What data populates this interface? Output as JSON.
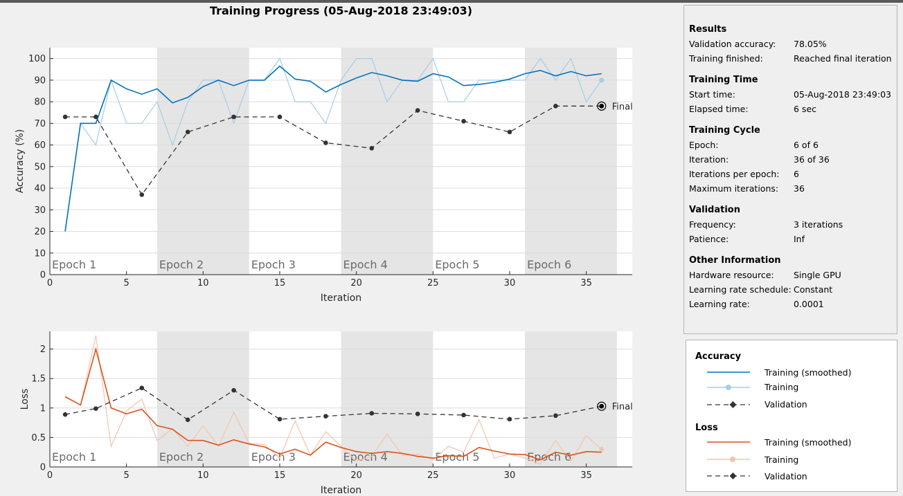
{
  "title": "Training Progress (05-Aug-2018 23:49:03)",
  "colors": {
    "acc_smoothed": "#0072bd",
    "acc_raw": "#a6cde5",
    "loss_smoothed": "#d95319",
    "loss_raw": "#f4c3ac",
    "validation": "#333333",
    "epoch_shade": "#e5e5e5"
  },
  "chart_data": [
    {
      "type": "line",
      "title": "",
      "xlabel": "Iteration",
      "ylabel": "Accuracy (%)",
      "xlim": [
        0,
        38
      ],
      "ylim": [
        0,
        105
      ],
      "xticks": [
        0,
        5,
        10,
        15,
        20,
        25,
        30,
        35
      ],
      "yticks": [
        0,
        10,
        20,
        30,
        40,
        50,
        60,
        70,
        80,
        90,
        100
      ],
      "grid": true,
      "final_label": "Final",
      "epochs": [
        {
          "label": "Epoch 1",
          "start": 0,
          "end": 7
        },
        {
          "label": "Epoch 2",
          "start": 7,
          "end": 13
        },
        {
          "label": "Epoch 3",
          "start": 13,
          "end": 19
        },
        {
          "label": "Epoch 4",
          "start": 19,
          "end": 25
        },
        {
          "label": "Epoch 5",
          "start": 25,
          "end": 31
        },
        {
          "label": "Epoch 6",
          "start": 31,
          "end": 37
        }
      ],
      "series": [
        {
          "kind": "raw",
          "x": [
            1,
            2,
            3,
            4,
            5,
            6,
            7,
            8,
            9,
            10,
            11,
            12,
            13,
            14,
            15,
            16,
            17,
            18,
            19,
            20,
            21,
            22,
            23,
            24,
            25,
            26,
            27,
            28,
            29,
            30,
            31,
            32,
            33,
            34,
            35,
            36
          ],
          "values": [
            20,
            70,
            60,
            90,
            70,
            70,
            80,
            60,
            80,
            90,
            90,
            70,
            90,
            90,
            100,
            80,
            80,
            70,
            90,
            100,
            100,
            80,
            90,
            90,
            100,
            80,
            80,
            90,
            90,
            90,
            90,
            100,
            90,
            100,
            80,
            90
          ]
        },
        {
          "kind": "smoothed",
          "x": [
            1,
            2,
            3,
            4,
            5,
            6,
            7,
            8,
            9,
            10,
            11,
            12,
            13,
            14,
            15,
            16,
            17,
            18,
            19,
            20,
            21,
            22,
            23,
            24,
            25,
            26,
            27,
            28,
            29,
            30,
            31,
            32,
            33,
            34,
            35,
            36
          ],
          "values": [
            20,
            70,
            70,
            90,
            86,
            83.5,
            86,
            79.5,
            82,
            87,
            90,
            87.5,
            90,
            90,
            96.5,
            90.5,
            89.5,
            84.5,
            88,
            91,
            93.5,
            92,
            90,
            89.5,
            93,
            91.5,
            87.5,
            88,
            89,
            90.5,
            93,
            94.5,
            92,
            94,
            92,
            93
          ]
        },
        {
          "kind": "validation",
          "x": [
            1,
            3,
            6,
            9,
            12,
            15,
            18,
            21,
            24,
            27,
            30,
            33,
            36
          ],
          "values": [
            73,
            73,
            37,
            66,
            73,
            73,
            61,
            58.5,
            76,
            71,
            66,
            78,
            78
          ]
        }
      ]
    },
    {
      "type": "line",
      "title": "",
      "xlabel": "Iteration",
      "ylabel": "Loss",
      "xlim": [
        0,
        38
      ],
      "ylim": [
        0,
        2.3
      ],
      "xticks": [
        0,
        5,
        10,
        15,
        20,
        25,
        30,
        35
      ],
      "yticks": [
        0,
        0.5,
        1,
        1.5,
        2
      ],
      "grid": true,
      "final_label": "Final",
      "epochs": [
        {
          "label": "Epoch 1",
          "start": 0,
          "end": 7
        },
        {
          "label": "Epoch 2",
          "start": 7,
          "end": 13
        },
        {
          "label": "Epoch 3",
          "start": 13,
          "end": 19
        },
        {
          "label": "Epoch 4",
          "start": 19,
          "end": 25
        },
        {
          "label": "Epoch 5",
          "start": 25,
          "end": 31
        },
        {
          "label": "Epoch 6",
          "start": 31,
          "end": 37
        }
      ],
      "series": [
        {
          "kind": "raw",
          "x": [
            1,
            2,
            3,
            4,
            5,
            6,
            7,
            8,
            9,
            10,
            11,
            12,
            13,
            14,
            15,
            16,
            17,
            18,
            19,
            20,
            21,
            22,
            23,
            24,
            25,
            26,
            27,
            28,
            29,
            30,
            31,
            32,
            33,
            34,
            35,
            36
          ],
          "values": [
            1.2,
            1.05,
            2.23,
            0.35,
            0.95,
            1.15,
            0.45,
            0.65,
            0.35,
            0.7,
            0.35,
            0.93,
            0.4,
            0.38,
            0.15,
            0.78,
            0.2,
            0.6,
            0.35,
            0.1,
            0.18,
            0.56,
            0.2,
            0.22,
            0.12,
            0.35,
            0.25,
            0.8,
            0.15,
            0.22,
            0.15,
            0.05,
            0.45,
            0.1,
            0.53,
            0.3
          ]
        },
        {
          "kind": "smoothed",
          "x": [
            1,
            2,
            3,
            4,
            5,
            6,
            7,
            8,
            9,
            10,
            11,
            12,
            13,
            14,
            15,
            16,
            17,
            18,
            19,
            20,
            21,
            22,
            23,
            24,
            25,
            26,
            27,
            28,
            29,
            30,
            31,
            32,
            33,
            34,
            35,
            36
          ],
          "values": [
            1.19,
            1.05,
            2.0,
            1.0,
            0.9,
            0.98,
            0.7,
            0.64,
            0.45,
            0.45,
            0.37,
            0.46,
            0.39,
            0.34,
            0.22,
            0.3,
            0.2,
            0.42,
            0.33,
            0.26,
            0.23,
            0.26,
            0.23,
            0.18,
            0.15,
            0.19,
            0.18,
            0.33,
            0.27,
            0.22,
            0.21,
            0.12,
            0.25,
            0.2,
            0.26,
            0.25
          ]
        },
        {
          "kind": "validation",
          "x": [
            1,
            3,
            6,
            9,
            12,
            15,
            18,
            21,
            24,
            27,
            30,
            33,
            36
          ],
          "values": [
            0.89,
            0.99,
            1.34,
            0.8,
            1.3,
            0.81,
            0.86,
            0.91,
            0.9,
            0.88,
            0.81,
            0.87,
            1.03
          ]
        }
      ]
    }
  ],
  "info": {
    "sections": [
      {
        "heading": "Results",
        "rows": [
          {
            "key": "Validation accuracy:",
            "value": "78.05%"
          },
          {
            "key": "Training finished:",
            "value": "Reached final iteration"
          }
        ]
      },
      {
        "heading": "Training Time",
        "rows": [
          {
            "key": "Start time:",
            "value": "05-Aug-2018 23:49:03"
          },
          {
            "key": "Elapsed time:",
            "value": "6 sec"
          }
        ]
      },
      {
        "heading": "Training Cycle",
        "rows": [
          {
            "key": "Epoch:",
            "value": "6 of 6"
          },
          {
            "key": "Iteration:",
            "value": "36 of 36"
          },
          {
            "key": "Iterations per epoch:",
            "value": "6"
          },
          {
            "key": "Maximum iterations:",
            "value": "36"
          }
        ]
      },
      {
        "heading": "Validation",
        "rows": [
          {
            "key": "Frequency:",
            "value": "3 iterations"
          },
          {
            "key": "Patience:",
            "value": "Inf"
          }
        ]
      },
      {
        "heading": "Other Information",
        "rows": [
          {
            "key": "Hardware resource:",
            "value": "Single GPU"
          },
          {
            "key": "Learning rate schedule:",
            "value": "Constant"
          },
          {
            "key": "Learning rate:",
            "value": "0.0001"
          }
        ]
      }
    ]
  },
  "legend": {
    "groups": [
      {
        "heading": "Accuracy",
        "items": [
          {
            "label": "Training (smoothed)",
            "style": "acc_smoothed"
          },
          {
            "label": "Training",
            "style": "acc_raw"
          },
          {
            "label": "Validation",
            "style": "validation"
          }
        ]
      },
      {
        "heading": "Loss",
        "items": [
          {
            "label": "Training (smoothed)",
            "style": "loss_smoothed"
          },
          {
            "label": "Training",
            "style": "loss_raw"
          },
          {
            "label": "Validation",
            "style": "validation"
          }
        ]
      }
    ]
  }
}
